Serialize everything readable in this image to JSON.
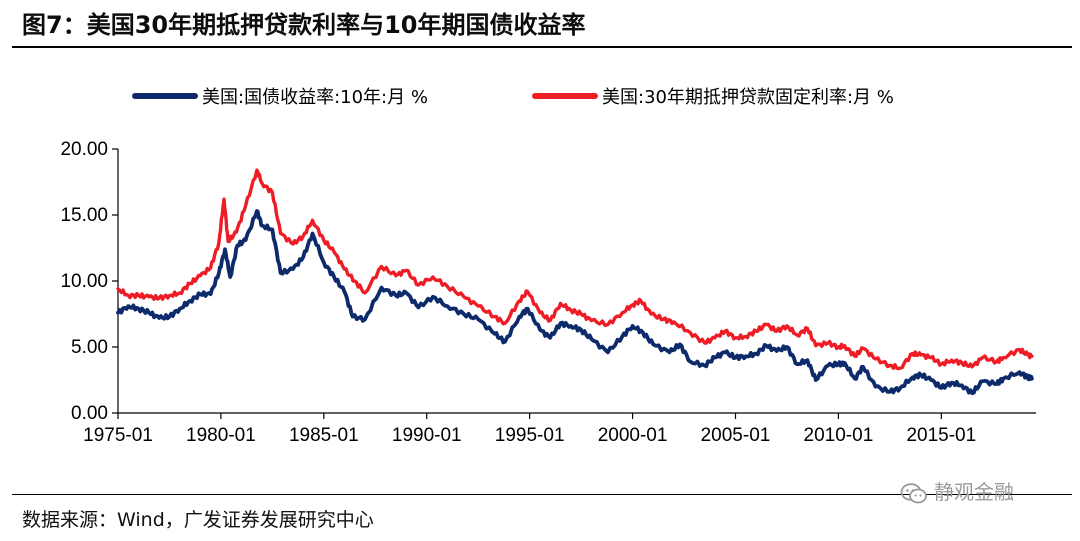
{
  "figure": {
    "title": "图7：美国30年期抵押贷款利率与10年期国债收益率",
    "source": "数据来源：Wind，广发证券发展研究中心",
    "watermark": "静观金融"
  },
  "chart_data": {
    "type": "line",
    "title": "",
    "xlabel": "",
    "ylabel": "",
    "xlim": [
      1975.0,
      2019.6
    ],
    "ylim": [
      0,
      20
    ],
    "yticks": [
      "0.00",
      "5.00",
      "10.00",
      "15.00",
      "20.00"
    ],
    "xticks": [
      "1975-01",
      "1980-01",
      "1985-01",
      "1990-01",
      "1995-01",
      "2000-01",
      "2005-01",
      "2010-01",
      "2015-01"
    ],
    "grid": false,
    "legend": "top",
    "series": [
      {
        "name": "美国:国债收益率:10年:月 %",
        "color": "#0d2a6b",
        "points": [
          [
            1975.0,
            7.6
          ],
          [
            1975.5,
            8.1
          ],
          [
            1976.0,
            7.9
          ],
          [
            1976.5,
            7.6
          ],
          [
            1977.0,
            7.2
          ],
          [
            1977.5,
            7.3
          ],
          [
            1978.0,
            7.9
          ],
          [
            1978.5,
            8.5
          ],
          [
            1979.0,
            9.0
          ],
          [
            1979.5,
            9.0
          ],
          [
            1979.9,
            10.6
          ],
          [
            1980.2,
            12.4
          ],
          [
            1980.45,
            10.3
          ],
          [
            1980.8,
            12.7
          ],
          [
            1981.2,
            13.1
          ],
          [
            1981.75,
            15.3
          ],
          [
            1982.0,
            14.2
          ],
          [
            1982.5,
            13.9
          ],
          [
            1982.9,
            10.6
          ],
          [
            1983.5,
            10.9
          ],
          [
            1984.0,
            11.8
          ],
          [
            1984.45,
            13.6
          ],
          [
            1985.0,
            11.4
          ],
          [
            1985.5,
            10.3
          ],
          [
            1986.0,
            9.2
          ],
          [
            1986.4,
            7.3
          ],
          [
            1987.0,
            7.1
          ],
          [
            1987.8,
            9.5
          ],
          [
            1988.5,
            8.9
          ],
          [
            1989.0,
            9.1
          ],
          [
            1989.6,
            8.0
          ],
          [
            1990.3,
            8.8
          ],
          [
            1991.0,
            8.1
          ],
          [
            1991.8,
            7.5
          ],
          [
            1992.5,
            7.1
          ],
          [
            1993.3,
            6.0
          ],
          [
            1993.8,
            5.4
          ],
          [
            1994.5,
            7.3
          ],
          [
            1994.9,
            7.9
          ],
          [
            1995.5,
            6.3
          ],
          [
            1996.0,
            5.7
          ],
          [
            1996.5,
            6.8
          ],
          [
            1997.0,
            6.6
          ],
          [
            1997.5,
            6.3
          ],
          [
            1998.0,
            5.6
          ],
          [
            1998.8,
            4.6
          ],
          [
            1999.5,
            5.8
          ],
          [
            2000.0,
            6.6
          ],
          [
            2000.5,
            6.1
          ],
          [
            2001.0,
            5.2
          ],
          [
            2001.8,
            4.6
          ],
          [
            2002.3,
            5.2
          ],
          [
            2002.8,
            3.9
          ],
          [
            2003.5,
            3.6
          ],
          [
            2004.0,
            4.2
          ],
          [
            2004.5,
            4.6
          ],
          [
            2005.0,
            4.2
          ],
          [
            2005.5,
            4.3
          ],
          [
            2006.0,
            4.5
          ],
          [
            2006.5,
            5.1
          ],
          [
            2007.0,
            4.7
          ],
          [
            2007.5,
            5.0
          ],
          [
            2008.0,
            3.7
          ],
          [
            2008.5,
            4.0
          ],
          [
            2008.9,
            2.5
          ],
          [
            2009.5,
            3.6
          ],
          [
            2010.0,
            3.7
          ],
          [
            2010.3,
            3.8
          ],
          [
            2010.8,
            2.6
          ],
          [
            2011.2,
            3.5
          ],
          [
            2011.8,
            2.0
          ],
          [
            2012.5,
            1.6
          ],
          [
            2013.0,
            1.9
          ],
          [
            2013.6,
            2.7
          ],
          [
            2014.0,
            2.9
          ],
          [
            2014.5,
            2.5
          ],
          [
            2015.0,
            1.9
          ],
          [
            2015.5,
            2.3
          ],
          [
            2016.0,
            2.1
          ],
          [
            2016.5,
            1.5
          ],
          [
            2017.0,
            2.4
          ],
          [
            2017.7,
            2.2
          ],
          [
            2018.0,
            2.6
          ],
          [
            2018.8,
            3.1
          ],
          [
            2019.2,
            2.7
          ],
          [
            2019.4,
            2.6
          ]
        ]
      },
      {
        "name": "美国:30年期抵押贷款固定利率:月 %",
        "color": "#ee1c25",
        "points": [
          [
            1975.0,
            9.4
          ],
          [
            1975.5,
            8.9
          ],
          [
            1976.0,
            8.9
          ],
          [
            1976.5,
            8.8
          ],
          [
            1977.0,
            8.7
          ],
          [
            1977.5,
            8.9
          ],
          [
            1978.0,
            9.1
          ],
          [
            1978.5,
            9.8
          ],
          [
            1979.0,
            10.4
          ],
          [
            1979.5,
            11.0
          ],
          [
            1979.9,
            12.9
          ],
          [
            1980.15,
            16.2
          ],
          [
            1980.35,
            13.0
          ],
          [
            1980.75,
            13.7
          ],
          [
            1981.2,
            15.7
          ],
          [
            1981.75,
            18.4
          ],
          [
            1982.0,
            17.4
          ],
          [
            1982.5,
            16.7
          ],
          [
            1982.9,
            13.6
          ],
          [
            1983.5,
            12.8
          ],
          [
            1984.0,
            13.4
          ],
          [
            1984.45,
            14.6
          ],
          [
            1985.0,
            13.1
          ],
          [
            1985.5,
            12.2
          ],
          [
            1986.0,
            10.9
          ],
          [
            1986.5,
            10.0
          ],
          [
            1987.0,
            9.1
          ],
          [
            1987.8,
            11.1
          ],
          [
            1988.5,
            10.4
          ],
          [
            1989.0,
            10.8
          ],
          [
            1989.6,
            9.7
          ],
          [
            1990.3,
            10.3
          ],
          [
            1991.0,
            9.6
          ],
          [
            1991.8,
            8.8
          ],
          [
            1992.5,
            8.1
          ],
          [
            1993.3,
            7.3
          ],
          [
            1993.8,
            6.8
          ],
          [
            1994.5,
            8.5
          ],
          [
            1994.9,
            9.2
          ],
          [
            1995.5,
            7.6
          ],
          [
            1996.0,
            7.0
          ],
          [
            1996.5,
            8.3
          ],
          [
            1997.0,
            7.8
          ],
          [
            1997.5,
            7.5
          ],
          [
            1998.0,
            7.0
          ],
          [
            1998.8,
            6.7
          ],
          [
            1999.5,
            7.6
          ],
          [
            2000.0,
            8.2
          ],
          [
            2000.4,
            8.5
          ],
          [
            2000.9,
            7.5
          ],
          [
            2001.5,
            7.1
          ],
          [
            2002.0,
            6.9
          ],
          [
            2002.8,
            6.1
          ],
          [
            2003.5,
            5.3
          ],
          [
            2004.0,
            5.7
          ],
          [
            2004.5,
            6.2
          ],
          [
            2005.0,
            5.7
          ],
          [
            2005.5,
            5.8
          ],
          [
            2006.0,
            6.2
          ],
          [
            2006.5,
            6.7
          ],
          [
            2007.0,
            6.2
          ],
          [
            2007.5,
            6.6
          ],
          [
            2008.0,
            5.9
          ],
          [
            2008.5,
            6.4
          ],
          [
            2008.9,
            5.1
          ],
          [
            2009.5,
            5.3
          ],
          [
            2010.0,
            5.0
          ],
          [
            2010.3,
            5.1
          ],
          [
            2010.8,
            4.3
          ],
          [
            2011.2,
            4.9
          ],
          [
            2011.8,
            4.1
          ],
          [
            2012.5,
            3.6
          ],
          [
            2013.0,
            3.4
          ],
          [
            2013.6,
            4.5
          ],
          [
            2014.0,
            4.4
          ],
          [
            2014.5,
            4.2
          ],
          [
            2015.0,
            3.7
          ],
          [
            2015.5,
            4.0
          ],
          [
            2016.0,
            3.8
          ],
          [
            2016.5,
            3.5
          ],
          [
            2017.0,
            4.2
          ],
          [
            2017.7,
            3.9
          ],
          [
            2018.0,
            4.2
          ],
          [
            2018.8,
            4.8
          ],
          [
            2019.2,
            4.4
          ],
          [
            2019.4,
            4.3
          ]
        ]
      }
    ]
  }
}
